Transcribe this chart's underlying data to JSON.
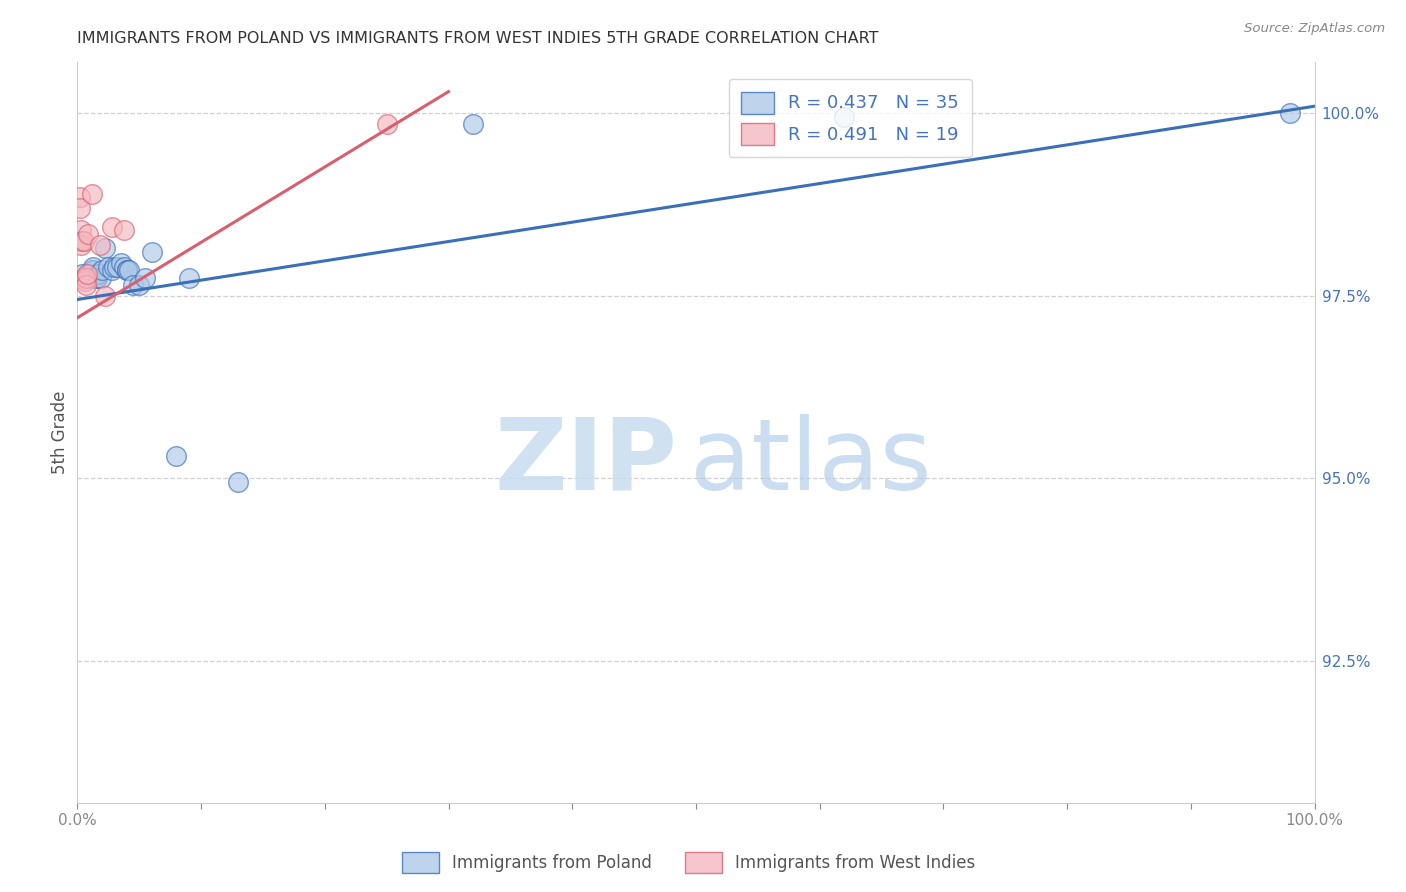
{
  "title": "IMMIGRANTS FROM POLAND VS IMMIGRANTS FROM WEST INDIES 5TH GRADE CORRELATION CHART",
  "source": "Source: ZipAtlas.com",
  "ylabel": "5th Grade",
  "ylabel_right_ticks": [
    "100.0%",
    "97.5%",
    "95.0%",
    "92.5%"
  ],
  "ylabel_right_values": [
    1.0,
    0.975,
    0.95,
    0.925
  ],
  "legend_blue_label": "R = 0.437   N = 35",
  "legend_pink_label": "R = 0.491   N = 19",
  "blue_color": "#aec8e8",
  "pink_color": "#f4b8c1",
  "trendline_blue": "#3a6fba",
  "trendline_pink": "#d95f6e",
  "blue_scatter_x": [
    0.004,
    0.007,
    0.009,
    0.01,
    0.01,
    0.011,
    0.012,
    0.013,
    0.013,
    0.014,
    0.015,
    0.016,
    0.017,
    0.019,
    0.02,
    0.022,
    0.025,
    0.028,
    0.03,
    0.032,
    0.035,
    0.038,
    0.04,
    0.04,
    0.042,
    0.045,
    0.05,
    0.055,
    0.06,
    0.08,
    0.09,
    0.13,
    0.32,
    0.62,
    0.98
  ],
  "blue_scatter_y": [
    0.978,
    0.9775,
    0.978,
    0.9775,
    0.9775,
    0.978,
    0.9785,
    0.9785,
    0.979,
    0.9775,
    0.9775,
    0.9775,
    0.978,
    0.9775,
    0.9785,
    0.9815,
    0.979,
    0.9785,
    0.979,
    0.979,
    0.9795,
    0.979,
    0.9785,
    0.9785,
    0.9785,
    0.9765,
    0.9765,
    0.9775,
    0.981,
    0.953,
    0.9775,
    0.9495,
    0.9985,
    0.9995,
    1.0
  ],
  "pink_scatter_x": [
    0.002,
    0.002,
    0.003,
    0.003,
    0.004,
    0.005,
    0.005,
    0.006,
    0.006,
    0.007,
    0.007,
    0.008,
    0.009,
    0.012,
    0.018,
    0.022,
    0.028,
    0.038,
    0.25
  ],
  "pink_scatter_y": [
    0.9885,
    0.987,
    0.984,
    0.982,
    0.9825,
    0.9825,
    0.9775,
    0.9775,
    0.977,
    0.9775,
    0.9765,
    0.978,
    0.9835,
    0.989,
    0.982,
    0.975,
    0.9845,
    0.984,
    0.9985
  ],
  "blue_trend_x0": 0.0,
  "blue_trend_x1": 1.0,
  "blue_trend_y0": 0.9745,
  "blue_trend_y1": 1.001,
  "pink_trend_x0": 0.0,
  "pink_trend_x1": 0.3,
  "pink_trend_y0": 0.972,
  "pink_trend_y1": 1.003,
  "xlim": [
    0.0,
    1.0
  ],
  "ylim": [
    0.9055,
    1.007
  ],
  "watermark_zip_color": "#c8dcf0",
  "watermark_atlas_color": "#b0cce8",
  "background_color": "#ffffff",
  "grid_color": "#d0d0d0",
  "right_tick_color": "#4472c4",
  "title_color": "#333333",
  "ylabel_color": "#555555"
}
